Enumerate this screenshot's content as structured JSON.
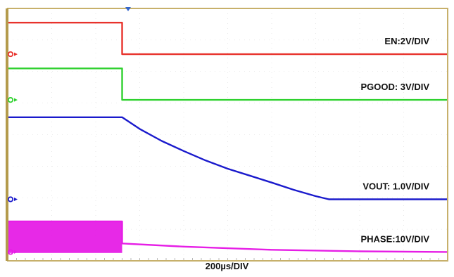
{
  "chart_data": {
    "type": "line",
    "timebase_label": "200µs/DIV",
    "x_unit": "div",
    "xlim": [
      0,
      10
    ],
    "y_unit": "div",
    "ylim": [
      0,
      8
    ],
    "grid": true,
    "trigger_marker": true,
    "series": [
      {
        "name": "EN:2V/DIV",
        "color": "#e8322c",
        "x": [
          0,
          2.6,
          2.6,
          10
        ],
        "y": [
          7.55,
          7.55,
          6.55,
          6.55
        ]
      },
      {
        "name": "PGOOD: 3V/DIV",
        "color": "#2fd12f",
        "x": [
          0,
          2.6,
          2.6,
          10
        ],
        "y": [
          6.1,
          6.1,
          5.1,
          5.1
        ]
      },
      {
        "name": "VOUT: 1.0V/DIV",
        "color": "#1a1acc",
        "x": [
          0,
          2.6,
          3.0,
          3.5,
          4.0,
          4.5,
          5.0,
          5.5,
          6.0,
          6.5,
          7.0,
          7.3,
          10
        ],
        "y": [
          4.55,
          4.55,
          4.18,
          3.8,
          3.48,
          3.18,
          2.92,
          2.7,
          2.48,
          2.25,
          2.05,
          1.95,
          1.95
        ]
      },
      {
        "name": "PHASE:10V/DIV",
        "color": "#e61ee6",
        "x": [
          0,
          2.6,
          2.6,
          4,
          6,
          8,
          10
        ],
        "y": [
          1.25,
          1.25,
          0.55,
          0.45,
          0.35,
          0.3,
          0.28
        ],
        "switching_band": {
          "x": [
            0,
            2.6
          ],
          "y": [
            0.25,
            1.25
          ]
        }
      }
    ]
  }
}
